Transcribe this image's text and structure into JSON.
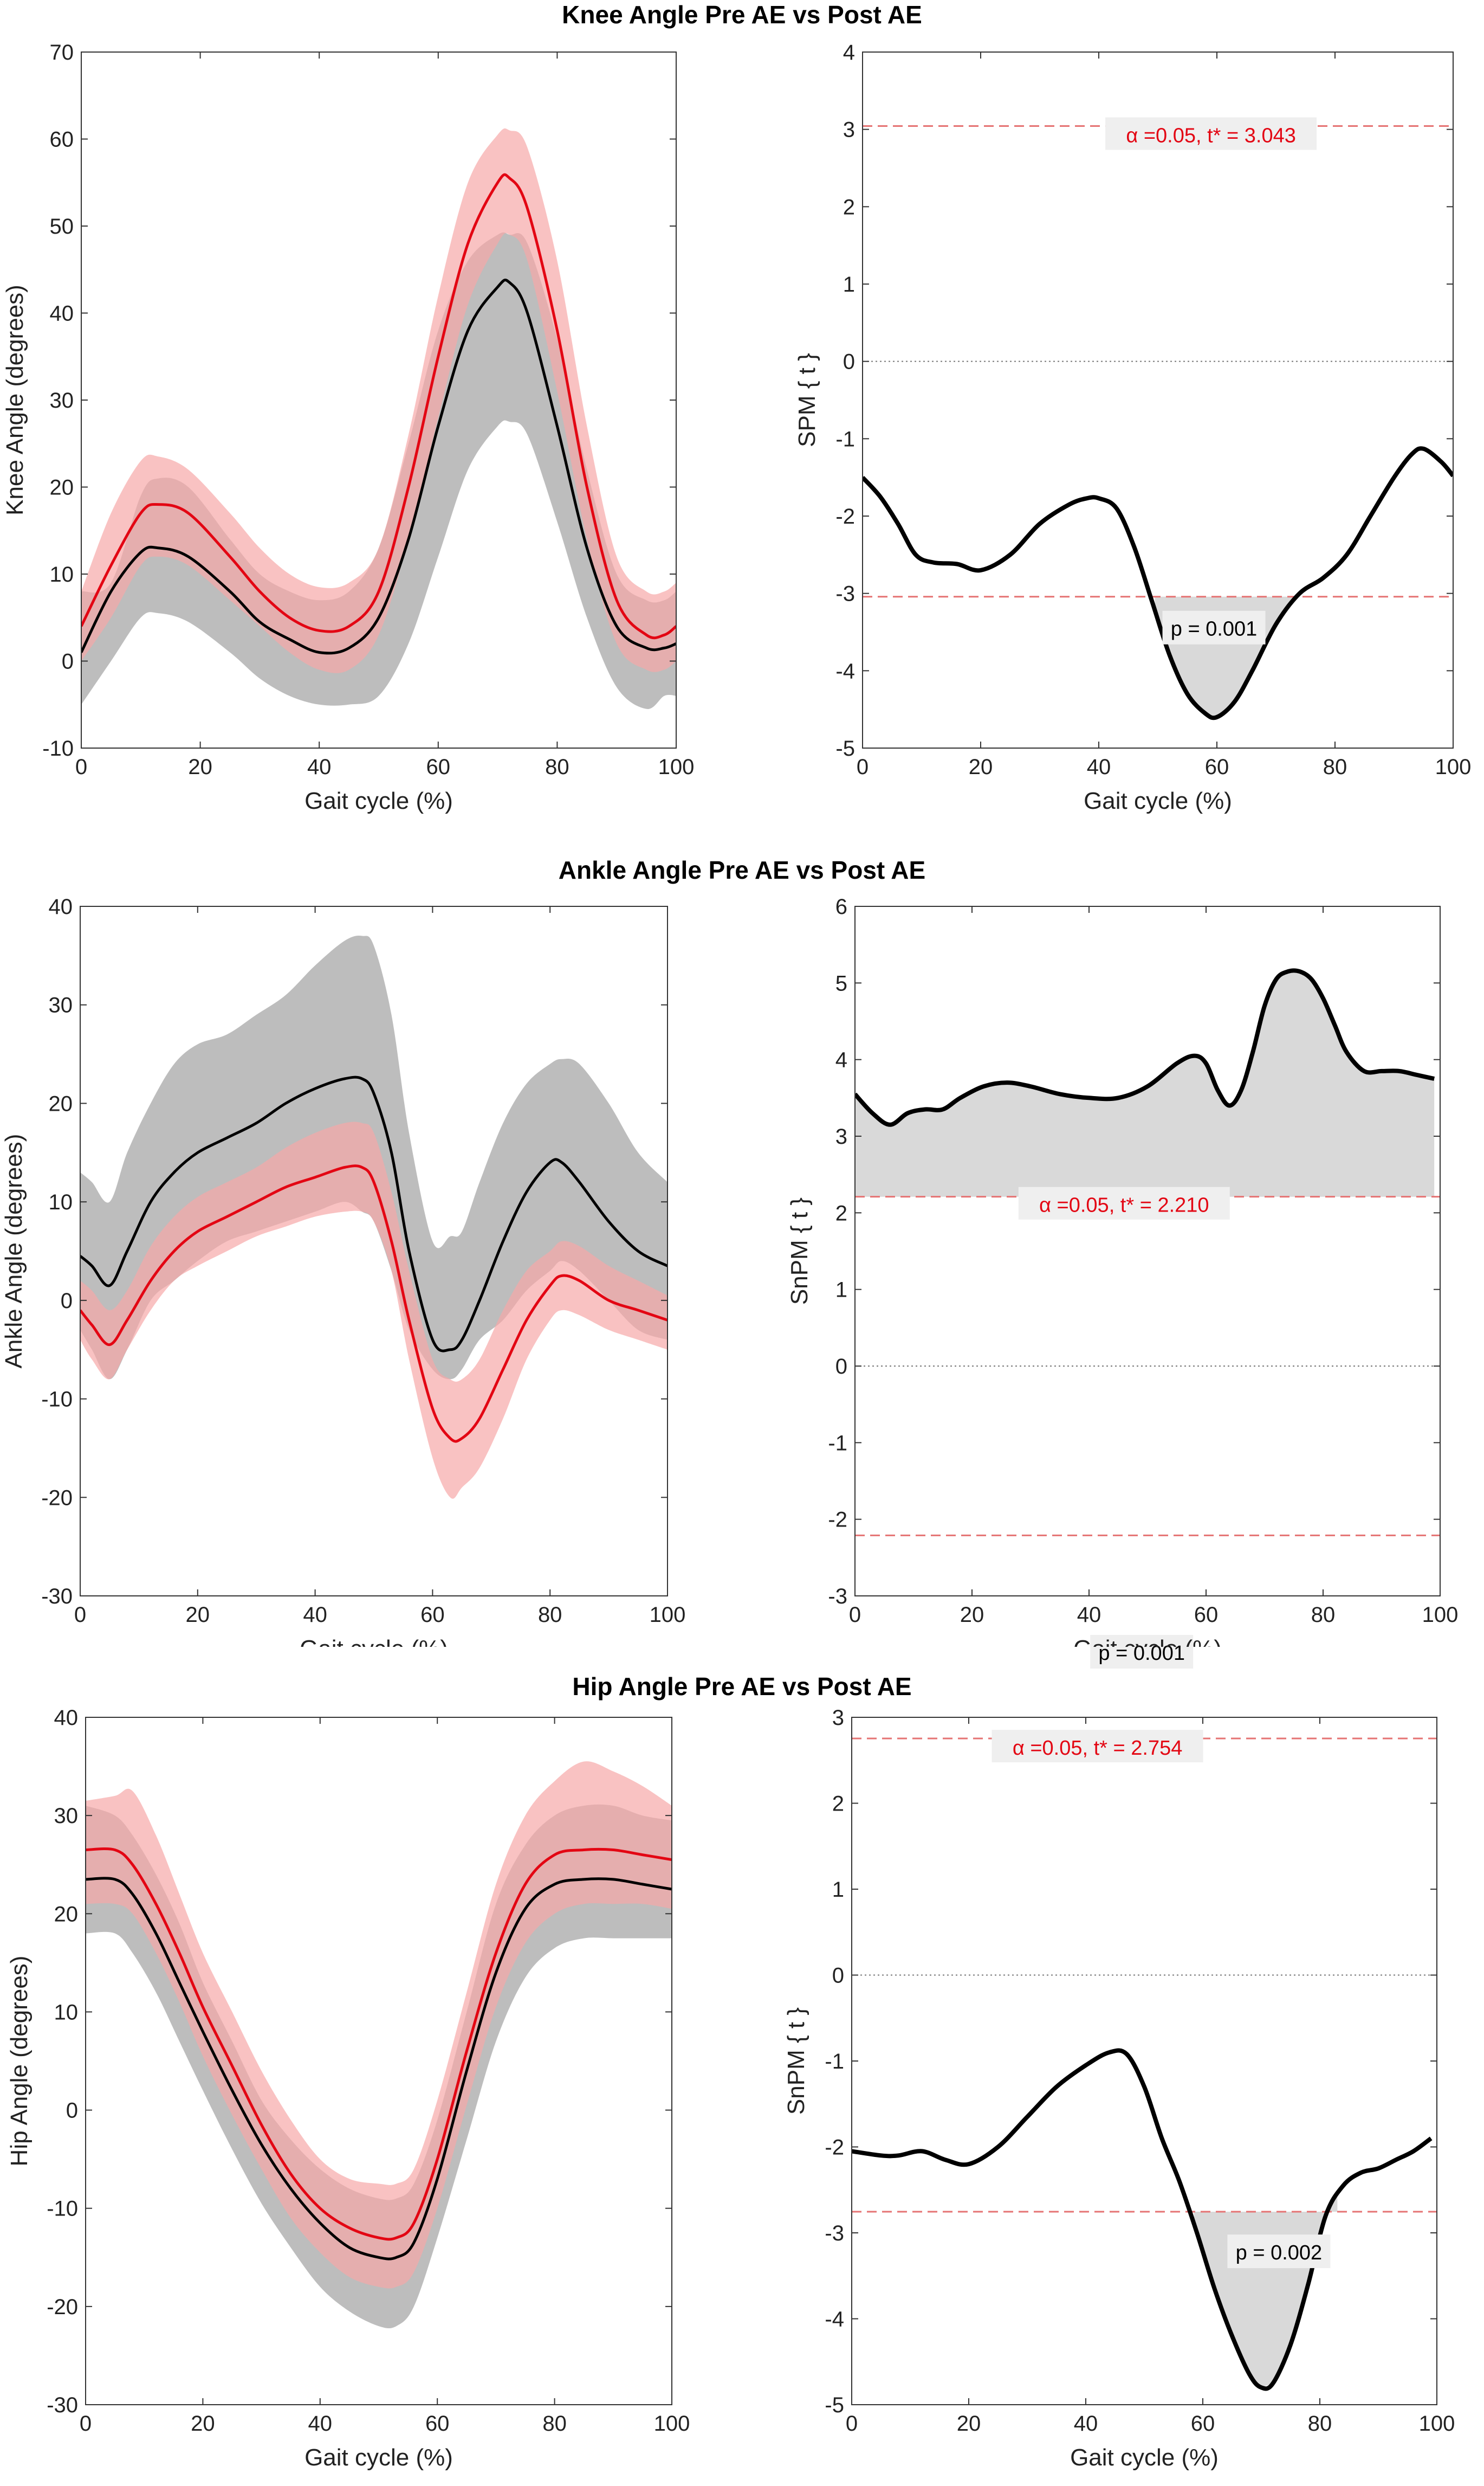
{
  "chart_data": [
    {
      "type": "line",
      "panel": "left",
      "title": "Knee Angle Pre AE vs Post AE",
      "xlabel": "Gait cycle (%)",
      "ylabel": "Knee Angle (degrees)",
      "xlim": [
        0,
        100
      ],
      "ylim": [
        -10,
        70
      ],
      "xticks": [
        0,
        20,
        40,
        60,
        80,
        100
      ],
      "yticks": [
        -10,
        0,
        10,
        20,
        30,
        40,
        50,
        60,
        70
      ],
      "x": [
        0,
        5,
        10,
        13,
        18,
        25,
        30,
        35,
        40,
        45,
        50,
        55,
        60,
        65,
        70,
        72,
        75,
        80,
        85,
        90,
        95,
        98,
        100
      ],
      "series": [
        {
          "name": "Pre AE",
          "color": "#000000",
          "band_color": "#bdbdbd",
          "mean": [
            1,
            8,
            12.5,
            13,
            12,
            8,
            4.5,
            2.5,
            1,
            1.5,
            5,
            14,
            27,
            38,
            43,
            43.5,
            40,
            27,
            13,
            4,
            1.5,
            1.5,
            2
          ],
          "upper": [
            8,
            9,
            19,
            21,
            20,
            14,
            10,
            8,
            7,
            8,
            13,
            25,
            38,
            46,
            49,
            49,
            48,
            37,
            22,
            10,
            7,
            7,
            8
          ],
          "lower": [
            -5,
            0,
            5,
            5.5,
            4.5,
            1,
            -2,
            -4,
            -5,
            -5,
            -4,
            2,
            12,
            22,
            27,
            27.5,
            26,
            16,
            5,
            -3,
            -5.5,
            -4,
            -4
          ]
        },
        {
          "name": "Post AE",
          "color": "#e30613",
          "band_color": "#f7a8a8",
          "mean": [
            4,
            11,
            17,
            18,
            17,
            12,
            8,
            5,
            3.5,
            4,
            8,
            20,
            35,
            48,
            55,
            55.5,
            52,
            38,
            20,
            7,
            3,
            3,
            4
          ],
          "upper": [
            8,
            17,
            23,
            23.5,
            22,
            17,
            13,
            10,
            8.5,
            9,
            13,
            26,
            42,
            55,
            60.5,
            61,
            59,
            46,
            27,
            12,
            8,
            8,
            9
          ],
          "lower": [
            0,
            5,
            11,
            12,
            11,
            7,
            4,
            1,
            -1,
            -1,
            3,
            14,
            28,
            41,
            48,
            49,
            46,
            31,
            14,
            2,
            -1,
            -1,
            0
          ]
        }
      ]
    },
    {
      "type": "line",
      "panel": "right",
      "xlabel": "Gait cycle (%)",
      "ylabel": "SPM { t }",
      "xlim": [
        0,
        100
      ],
      "ylim": [
        -5,
        4
      ],
      "xticks": [
        0,
        20,
        40,
        60,
        80,
        100
      ],
      "yticks": [
        -5,
        -4,
        -3,
        -2,
        -1,
        0,
        1,
        2,
        3,
        4
      ],
      "threshold": 3.043,
      "threshold_label": "α  =0.05,     t* = 3.043",
      "x": [
        0,
        3,
        6,
        9,
        12,
        16,
        20,
        25,
        30,
        35,
        38,
        40,
        43,
        46,
        49,
        52,
        55,
        58,
        60,
        63,
        66,
        70,
        74,
        78,
        82,
        86,
        90,
        93,
        95,
        98,
        100
      ],
      "values": [
        -1.5,
        -1.75,
        -2.1,
        -2.5,
        -2.6,
        -2.62,
        -2.7,
        -2.5,
        -2.1,
        -1.85,
        -1.77,
        -1.77,
        -1.9,
        -2.4,
        -3.1,
        -3.8,
        -4.3,
        -4.55,
        -4.6,
        -4.4,
        -4.0,
        -3.4,
        -3.0,
        -2.8,
        -2.5,
        -2.0,
        -1.5,
        -1.2,
        -1.13,
        -1.3,
        -1.48
      ],
      "clusters": [
        {
          "x0": 49.5,
          "x1": 74,
          "p_label": "p = 0.001",
          "side": "lower"
        }
      ]
    },
    {
      "type": "line",
      "panel": "left",
      "title": "Ankle Angle Pre AE vs Post AE",
      "xlabel": "Gait cycle (%)",
      "ylabel": "Ankle Angle (degrees)",
      "xlim": [
        0,
        100
      ],
      "ylim": [
        -30,
        40
      ],
      "xticks": [
        0,
        20,
        40,
        60,
        80,
        100
      ],
      "yticks": [
        -30,
        -20,
        -10,
        0,
        10,
        20,
        30,
        40
      ],
      "x": [
        0,
        2,
        5,
        8,
        12,
        16,
        20,
        25,
        30,
        35,
        40,
        45,
        48,
        50,
        53,
        56,
        60,
        63,
        65,
        68,
        72,
        76,
        80,
        82,
        85,
        90,
        95,
        100
      ],
      "series": [
        {
          "name": "Pre AE",
          "color": "#000000",
          "band_color": "#bdbdbd",
          "mean": [
            4.5,
            3.5,
            1.5,
            5,
            10,
            13,
            15,
            16.5,
            18,
            20,
            21.5,
            22.5,
            22.5,
            21,
            15,
            5,
            -4,
            -5,
            -4,
            0,
            6,
            11,
            14,
            14,
            12,
            8,
            5,
            3.5
          ],
          "upper": [
            13,
            12,
            10,
            15,
            20,
            24,
            26,
            27,
            29,
            31,
            34,
            36.5,
            37,
            36,
            29,
            17,
            6,
            6.5,
            7,
            12,
            18,
            22,
            24,
            24.5,
            24,
            20,
            15,
            12
          ],
          "lower": [
            -3,
            -5,
            -8,
            -5,
            0,
            2,
            4,
            6,
            7,
            8,
            9,
            10,
            9,
            8,
            3,
            -3,
            -7,
            -8,
            -7,
            -4,
            -2,
            1,
            3,
            4,
            3,
            0,
            -3,
            -4
          ]
        },
        {
          "name": "Post AE",
          "color": "#e30613",
          "band_color": "#f7a8a8",
          "mean": [
            -1,
            -2.5,
            -4.5,
            -2,
            2,
            5,
            7,
            8.5,
            10,
            11.5,
            12.5,
            13.5,
            13.5,
            12,
            6,
            -2,
            -11,
            -14,
            -14,
            -12,
            -7,
            -2,
            1.5,
            2.5,
            2,
            0,
            -1,
            -2
          ],
          "upper": [
            2,
            1,
            -1,
            1,
            5.5,
            8.5,
            10.5,
            12,
            13.5,
            15.5,
            17,
            18,
            18,
            17,
            11,
            3,
            -6,
            -8,
            -8,
            -6,
            -1,
            3,
            5,
            6,
            5.5,
            3.5,
            2,
            0.5
          ],
          "lower": [
            -4,
            -6,
            -8,
            -5,
            -1,
            2,
            3.5,
            5,
            6.5,
            7.5,
            8.5,
            9,
            9,
            8,
            3,
            -6,
            -16,
            -20,
            -19,
            -17,
            -12,
            -6,
            -2,
            -1,
            -1.5,
            -3,
            -4,
            -5
          ]
        }
      ]
    },
    {
      "type": "line",
      "panel": "right",
      "xlabel": "Gait cycle (%)",
      "ylabel": "SnPM { t }",
      "xlim": [
        0,
        100
      ],
      "ylim": [
        -3,
        6
      ],
      "xticks": [
        0,
        20,
        40,
        60,
        80,
        100
      ],
      "yticks": [
        -3,
        -2,
        -1,
        0,
        1,
        2,
        3,
        4,
        5,
        6
      ],
      "threshold": 2.21,
      "threshold_label": "α  =0.05,     t* = 2.210",
      "x": [
        0,
        3,
        6,
        9,
        12,
        15,
        18,
        22,
        26,
        30,
        35,
        40,
        45,
        50,
        55,
        58,
        60,
        62,
        64,
        66,
        68,
        70,
        72,
        74,
        76,
        78,
        80,
        82,
        84,
        87,
        90,
        93,
        96,
        99
      ],
      "values": [
        3.55,
        3.3,
        3.15,
        3.3,
        3.35,
        3.35,
        3.5,
        3.65,
        3.7,
        3.65,
        3.55,
        3.5,
        3.5,
        3.65,
        3.95,
        4.05,
        3.95,
        3.6,
        3.4,
        3.6,
        4.1,
        4.7,
        5.05,
        5.15,
        5.15,
        5.05,
        4.8,
        4.45,
        4.1,
        3.85,
        3.85,
        3.85,
        3.8,
        3.75
      ],
      "clusters": [
        {
          "x0": 0,
          "x1": 99,
          "p_label": "p = 0.001",
          "side": "upper"
        }
      ]
    },
    {
      "type": "line",
      "panel": "left",
      "title": "Hip Angle Pre AE vs Post AE",
      "xlabel": "Gait cycle (%)",
      "ylabel": "Hip Angle (degrees)",
      "xlim": [
        0,
        100
      ],
      "ylim": [
        -30,
        40
      ],
      "xticks": [
        0,
        20,
        40,
        60,
        80,
        100
      ],
      "yticks": [
        -30,
        -20,
        -10,
        0,
        10,
        20,
        30,
        40
      ],
      "x": [
        0,
        5,
        8,
        12,
        16,
        20,
        25,
        30,
        35,
        40,
        45,
        50,
        53,
        56,
        60,
        65,
        70,
        75,
        80,
        85,
        90,
        95,
        100
      ],
      "series": [
        {
          "name": "Pre AE",
          "color": "#000000",
          "band_color": "#bdbdbd",
          "mean": [
            23.5,
            23.5,
            22,
            18,
            13,
            8,
            2,
            -3.5,
            -8,
            -11.5,
            -14,
            -15,
            -15,
            -13.5,
            -7,
            4,
            14,
            20.5,
            23,
            23.5,
            23.5,
            23,
            22.5
          ],
          "upper": [
            31,
            30,
            28,
            24,
            19,
            13,
            7,
            1,
            -3,
            -6,
            -8,
            -9,
            -9,
            -7.5,
            -1,
            10,
            21,
            27,
            30,
            31,
            31,
            30,
            29.5
          ],
          "lower": [
            18,
            18,
            16,
            12,
            7,
            2,
            -4,
            -9.5,
            -14,
            -18,
            -20.5,
            -22,
            -22,
            -20,
            -13,
            -3,
            7,
            13.5,
            16.5,
            17.5,
            17.5,
            17.5,
            17.5
          ]
        },
        {
          "name": "Post AE",
          "color": "#e30613",
          "band_color": "#f7a8a8",
          "mean": [
            26.5,
            26.5,
            25,
            21,
            16,
            10.5,
            4.5,
            -1.5,
            -6.5,
            -10,
            -12,
            -13,
            -13,
            -11.5,
            -5,
            6,
            16,
            23,
            26,
            26.5,
            26.5,
            26,
            25.5
          ],
          "upper": [
            31.5,
            32,
            32.5,
            28,
            22,
            16,
            10,
            4,
            -1,
            -5,
            -7,
            -7.5,
            -7.5,
            -6,
            1,
            12,
            23,
            30,
            33.5,
            35.5,
            34.5,
            33,
            31
          ],
          "lower": [
            21,
            21,
            20,
            16,
            11,
            5.5,
            -0.5,
            -6,
            -11,
            -14.5,
            -17,
            -18,
            -18,
            -16.5,
            -10,
            0.5,
            10.5,
            17,
            20,
            21,
            21,
            21,
            20.5
          ]
        }
      ]
    },
    {
      "type": "line",
      "panel": "right",
      "xlabel": "Gait cycle (%)",
      "ylabel": "SnPM { t }",
      "xlim": [
        0,
        100
      ],
      "ylim": [
        -5,
        3
      ],
      "xticks": [
        0,
        20,
        40,
        60,
        80,
        100
      ],
      "yticks": [
        -5,
        -4,
        -3,
        -2,
        -1,
        0,
        1,
        2,
        3
      ],
      "threshold": 2.754,
      "threshold_label": "α  =0.05,     t* = 2.754",
      "x": [
        0,
        5,
        8,
        12,
        16,
        20,
        25,
        30,
        35,
        40,
        44,
        47,
        50,
        53,
        56,
        59,
        62,
        65,
        68,
        70,
        72,
        75,
        78,
        81,
        84,
        87,
        90,
        93,
        96,
        99
      ],
      "values": [
        -2.05,
        -2.1,
        -2.1,
        -2.05,
        -2.15,
        -2.2,
        -2.0,
        -1.65,
        -1.3,
        -1.05,
        -0.9,
        -0.92,
        -1.3,
        -1.9,
        -2.4,
        -3.0,
        -3.65,
        -4.2,
        -4.65,
        -4.8,
        -4.75,
        -4.3,
        -3.6,
        -2.8,
        -2.45,
        -2.3,
        -2.25,
        -2.15,
        -2.05,
        -1.9
      ],
      "clusters": [
        {
          "x0": 58.5,
          "x1": 83,
          "p_label": "p = 0.002",
          "side": "lower"
        }
      ]
    }
  ]
}
